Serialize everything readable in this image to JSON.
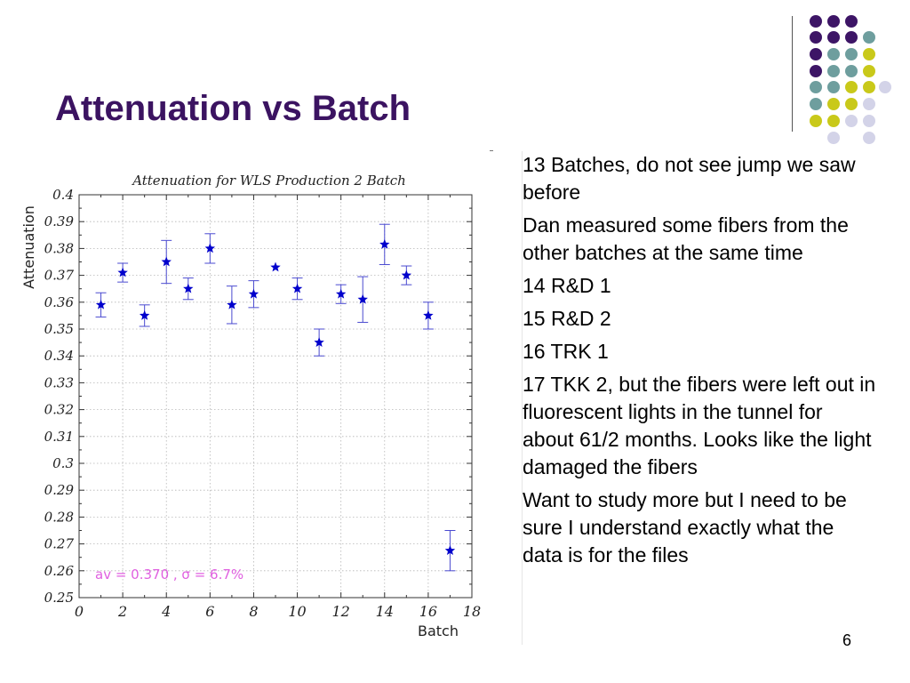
{
  "slide": {
    "title": "Attenuation vs Batch",
    "page_number": "6",
    "bullets": [
      "13 Batches, do not see jump we saw before",
      "Dan measured some fibers from the other batches at the same time",
      "14 R&D 1",
      "15 R&D 2",
      "16 TRK 1",
      "17 TKK 2, but the fibers were left out in fluorescent lights in the tunnel for about 61/2 months.  Looks like the light damaged the fibers",
      "Want to study more but I need to be sure I understand exactly what the data is for the files"
    ]
  },
  "colors": {
    "title": "#3b1361",
    "purple": "#3d1566",
    "teal": "#6e9e9e",
    "yellow": "#c9c91a",
    "lavender": "#d3d3e8",
    "marker": "#0000cc",
    "annotation": "#e060e0"
  },
  "decor": {
    "dot_grid": [
      [
        "purple",
        "purple",
        "purple",
        "none"
      ],
      [
        "purple",
        "purple",
        "purple",
        "teal"
      ],
      [
        "purple",
        "teal",
        "teal",
        "yellow"
      ],
      [
        "purple",
        "teal",
        "teal",
        "yellow",
        "none"
      ],
      [
        "teal",
        "teal",
        "yellow",
        "yellow",
        "lavender"
      ],
      [
        "teal",
        "yellow",
        "yellow",
        "lavender",
        "none"
      ],
      [
        "yellow",
        "yellow",
        "lavender",
        "lavender",
        "none"
      ],
      [
        "none",
        "lavender",
        "none",
        "lavender",
        "none"
      ]
    ]
  },
  "chart_data": {
    "type": "scatter",
    "title": "Attenuation for WLS Production 2 Batch",
    "xlabel": "Batch",
    "ylabel": "Attenuation",
    "xlim": [
      0,
      18
    ],
    "ylim": [
      0.25,
      0.4
    ],
    "x_ticks": [
      "0",
      "2",
      "4",
      "6",
      "8",
      "10",
      "12",
      "14",
      "16",
      "18"
    ],
    "y_ticks": [
      "0.25",
      "0.26",
      "0.27",
      "0.28",
      "0.29",
      "0.3",
      "0.31",
      "0.32",
      "0.33",
      "0.34",
      "0.35",
      "0.36",
      "0.37",
      "0.38",
      "0.39",
      "0.4"
    ],
    "grid": true,
    "annotation": "av = 0.370 ,  σ = 6.7%",
    "points": [
      {
        "x": 1,
        "y": 0.359,
        "err": 0.0045
      },
      {
        "x": 2,
        "y": 0.371,
        "err": 0.0035
      },
      {
        "x": 3,
        "y": 0.355,
        "err": 0.004
      },
      {
        "x": 4,
        "y": 0.375,
        "err": 0.008
      },
      {
        "x": 5,
        "y": 0.365,
        "err": 0.004
      },
      {
        "x": 6,
        "y": 0.38,
        "err": 0.0055
      },
      {
        "x": 7,
        "y": 0.359,
        "err": 0.007
      },
      {
        "x": 8,
        "y": 0.363,
        "err": 0.005
      },
      {
        "x": 9,
        "y": 0.373,
        "err": 0
      },
      {
        "x": 10,
        "y": 0.365,
        "err": 0.004
      },
      {
        "x": 11,
        "y": 0.345,
        "err": 0.005
      },
      {
        "x": 12,
        "y": 0.363,
        "err": 0.0035
      },
      {
        "x": 13,
        "y": 0.361,
        "err": 0.0085
      },
      {
        "x": 14,
        "y": 0.3815,
        "err": 0.0075
      },
      {
        "x": 15,
        "y": 0.37,
        "err": 0.0035
      },
      {
        "x": 16,
        "y": 0.355,
        "err": 0.005
      },
      {
        "x": 17,
        "y": 0.2675,
        "err": 0.0075
      }
    ]
  }
}
